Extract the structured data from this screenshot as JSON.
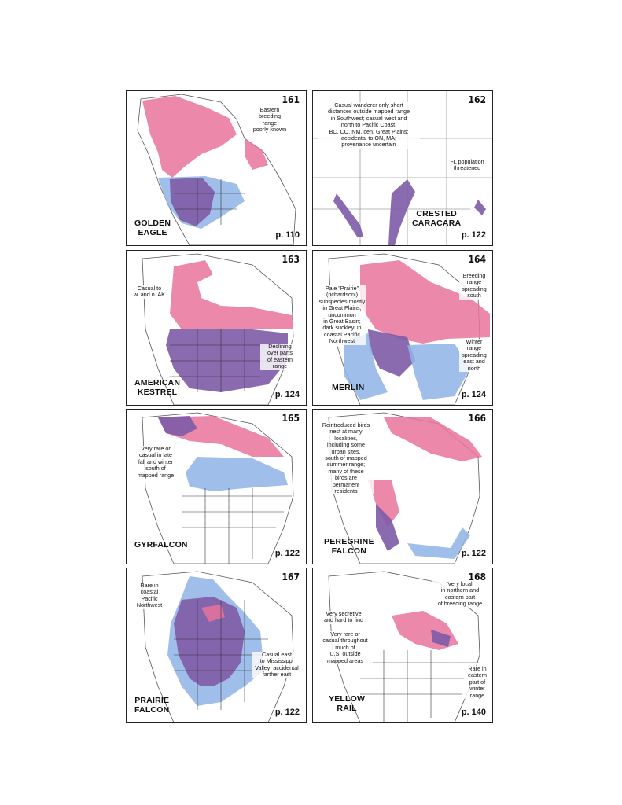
{
  "colors": {
    "breeding": "#e9739b",
    "winter": "#8fb3e6",
    "year_round": "#7e5ba6",
    "border": "#222222"
  },
  "maps": [
    {
      "number": "161",
      "species": "GOLDEN\nEAGLE",
      "page": "p. 110",
      "notes": [
        "Eastern\nbreeding\nrange\npoorly known"
      ]
    },
    {
      "number": "162",
      "species": "CRESTED\nCARACARA",
      "page": "p. 122",
      "notes": [
        "Casual wanderer only short\ndistances outside mapped range\nin Southwest; casual west and\nnorth to Pacific Coast,\nBC, CO, NM, cen. Great Plains;\naccidental to ON, MA;\nprovenance uncertain",
        "FL population\nthreatened"
      ]
    },
    {
      "number": "163",
      "species": "AMERICAN\nKESTREL",
      "page": "p. 124",
      "notes": [
        "Casual to\nw. and n. AK",
        "Declining\nover parts\nof eastern\nrange"
      ]
    },
    {
      "number": "164",
      "species": "MERLIN",
      "page": "p. 124",
      "notes": [
        "Pale \"Prairie\"\n(richardsoni)\nsubspecies mostly\nin Great Plains,\nuncommon\nin Great Basin;\ndark suckleyi in\ncoastal Pacific\nNorthwest",
        "Breeding\nrange\nspreading\nsouth",
        "Winter\nrange\nspreading\neast and\nnorth"
      ]
    },
    {
      "number": "165",
      "species": "GYRFALCON",
      "page": "p. 122",
      "notes": [
        "Very rare or\ncasual in late\nfall and winter\nsouth of\nmapped range"
      ]
    },
    {
      "number": "166",
      "species": "PEREGRINE\nFALCON",
      "page": "p. 122",
      "notes": [
        "Reintroduced birds\nnest at many\nlocalities,\nincluding some\nurban sites,\nsouth of mapped\nsummer range;\nmany of these\nbirds are\npermanent\nresidents"
      ]
    },
    {
      "number": "167",
      "species": "PRAIRIE\nFALCON",
      "page": "p. 122",
      "notes": [
        "Rare in\ncoastal\nPacific\nNorthwest",
        "Casual east\nto Mississippi\nValley; accidental\nfarther east"
      ]
    },
    {
      "number": "168",
      "species": "YELLOW\nRAIL",
      "page": "p. 140",
      "notes": [
        "Very local\nin northern and\neastern part\nof breeding range",
        "Very secretive\nand hard to find",
        "Very rare or\ncasual throughout\nmuch of\nU.S. outside\nmapped areas",
        "Rare in\neastern\npart of\nwinter\nrange"
      ]
    }
  ]
}
